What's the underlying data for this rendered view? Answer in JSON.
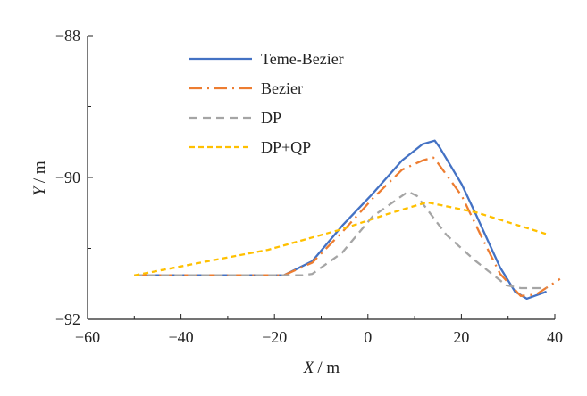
{
  "chart_data": {
    "type": "line",
    "title": "",
    "xlabel": {
      "var": "X",
      "unit": "/ m"
    },
    "ylabel": {
      "var": "Y",
      "unit": "/ m"
    },
    "xlim": [
      -60,
      40
    ],
    "ylim": [
      -92,
      -88
    ],
    "xticks": [
      -60,
      -40,
      -20,
      0,
      20,
      40
    ],
    "yticks": [
      -92,
      -90,
      -88
    ],
    "xtick_labels": [
      "−60",
      "−40",
      "−20",
      "0",
      "20",
      "40"
    ],
    "ytick_labels": [
      "−92",
      "−90",
      "−88"
    ],
    "grid": false,
    "legend_position": "top-left",
    "series": [
      {
        "name": "Teme-Bezier",
        "color": "#4472C4",
        "dash": "solid",
        "points": [
          [
            -50,
            -91.38
          ],
          [
            -18,
            -91.38
          ],
          [
            -11.9,
            -91.18
          ],
          [
            -5.5,
            -90.68
          ],
          [
            1,
            -90.23
          ],
          [
            7.3,
            -89.76
          ],
          [
            11.7,
            -89.53
          ],
          [
            14.3,
            -89.48
          ],
          [
            15.3,
            -89.57
          ],
          [
            20.1,
            -90.1
          ],
          [
            23.1,
            -90.52
          ],
          [
            28.3,
            -91.27
          ],
          [
            31.5,
            -91.61
          ],
          [
            34,
            -91.71
          ],
          [
            38.2,
            -91.61
          ]
        ]
      },
      {
        "name": "Bezier",
        "color": "#ED7D31",
        "dash": "dashdot",
        "points": [
          [
            -50,
            -91.38
          ],
          [
            -18,
            -91.38
          ],
          [
            -11.9,
            -91.2
          ],
          [
            -5.5,
            -90.77
          ],
          [
            1,
            -90.3
          ],
          [
            7.3,
            -89.89
          ],
          [
            11.7,
            -89.76
          ],
          [
            14,
            -89.72
          ],
          [
            14.9,
            -89.79
          ],
          [
            20.1,
            -90.26
          ],
          [
            24.5,
            -90.86
          ],
          [
            28.3,
            -91.36
          ],
          [
            32.7,
            -91.67
          ],
          [
            36,
            -91.65
          ],
          [
            41.1,
            -91.43
          ]
        ]
      },
      {
        "name": "DP",
        "color": "#A5A5A5",
        "dash": "dash",
        "points": [
          [
            -50,
            -91.38
          ],
          [
            -14,
            -91.38
          ],
          [
            -11.9,
            -91.36
          ],
          [
            -5.5,
            -91.06
          ],
          [
            1,
            -90.55
          ],
          [
            8.6,
            -90.2
          ],
          [
            10.5,
            -90.26
          ],
          [
            16.8,
            -90.81
          ],
          [
            23.1,
            -91.18
          ],
          [
            29.6,
            -91.52
          ],
          [
            32.7,
            -91.56
          ],
          [
            38.2,
            -91.56
          ]
        ]
      },
      {
        "name": "DP+QP",
        "color": "#FFC000",
        "dash": "shortdash",
        "points": [
          [
            -50,
            -91.38
          ],
          [
            -21.4,
            -91.02
          ],
          [
            -6.1,
            -90.74
          ],
          [
            4,
            -90.52
          ],
          [
            12.6,
            -90.35
          ],
          [
            23.1,
            -90.49
          ],
          [
            38.8,
            -90.81
          ]
        ]
      }
    ]
  }
}
